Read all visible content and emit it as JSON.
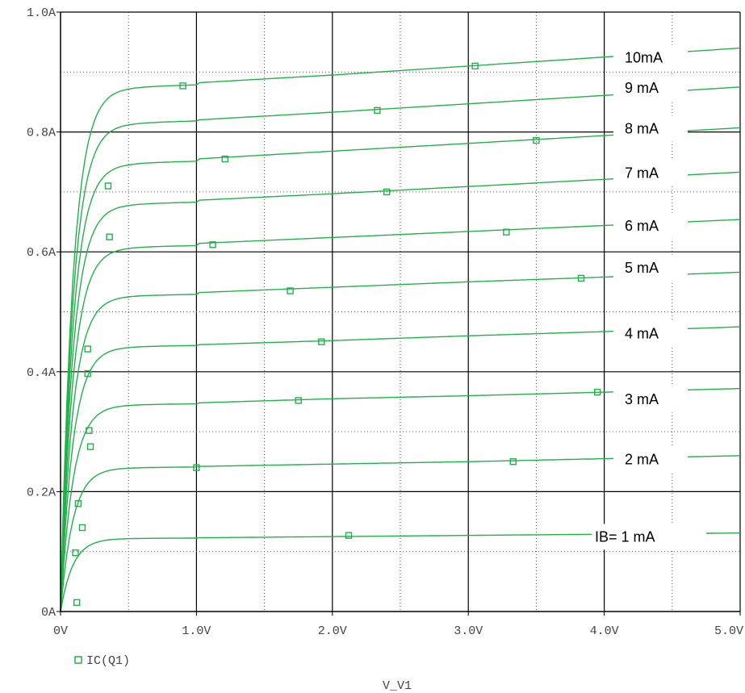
{
  "chart_data": {
    "type": "line",
    "title": "",
    "xlabel": "V_V1",
    "ylabel": "",
    "xlim": [
      0,
      5.0
    ],
    "ylim": [
      0,
      1.0
    ],
    "x_ticks": [
      "0V",
      "1.0V",
      "2.0V",
      "3.0V",
      "4.0V",
      "5.0V"
    ],
    "y_ticks": [
      "0A",
      "0.2A",
      "0.4A",
      "0.6A",
      "0.8A",
      "1.0A"
    ],
    "grid": true,
    "series_color": "#22b04a",
    "legend": {
      "marker": "square",
      "label": "IC(Q1)",
      "placement": "bottom-left"
    },
    "series": [
      {
        "label": "IB= 1 mA",
        "x": [
          0,
          0.1,
          0.2,
          0.3,
          0.5,
          1.0,
          2.0,
          3.0,
          4.0,
          5.0
        ],
        "y": [
          0,
          0.06,
          0.105,
          0.118,
          0.122,
          0.123,
          0.125,
          0.127,
          0.129,
          0.131
        ],
        "markers": [
          [
            0.12,
            0.015
          ],
          [
            2.12,
            0.127
          ]
        ]
      },
      {
        "label": "2 mA",
        "x": [
          0,
          0.1,
          0.2,
          0.3,
          0.5,
          1.0,
          2.0,
          3.0,
          4.0,
          5.0
        ],
        "y": [
          0,
          0.1,
          0.2,
          0.232,
          0.24,
          0.242,
          0.246,
          0.25,
          0.255,
          0.26
        ],
        "markers": [
          [
            0.16,
            0.14
          ],
          [
            1.0,
            0.24
          ],
          [
            3.33,
            0.25
          ]
        ]
      },
      {
        "label": "3 mA",
        "x": [
          0,
          0.1,
          0.2,
          0.3,
          0.5,
          1.0,
          2.0,
          3.0,
          4.0,
          5.0
        ],
        "y": [
          0,
          0.14,
          0.28,
          0.335,
          0.345,
          0.348,
          0.355,
          0.36,
          0.366,
          0.372
        ],
        "markers": [
          [
            0.22,
            0.275
          ],
          [
            1.75,
            0.352
          ],
          [
            3.95,
            0.366
          ]
        ]
      },
      {
        "label": "4 mA",
        "x": [
          0,
          0.1,
          0.2,
          0.3,
          0.5,
          1.0,
          2.0,
          3.0,
          4.0,
          5.0
        ],
        "y": [
          0,
          0.17,
          0.36,
          0.43,
          0.442,
          0.445,
          0.452,
          0.46,
          0.467,
          0.475
        ],
        "markers": [
          [
            0.13,
            0.18
          ],
          [
            1.92,
            0.45
          ]
        ]
      },
      {
        "label": "5 mA",
        "x": [
          0,
          0.1,
          0.2,
          0.3,
          0.5,
          1.0,
          2.0,
          3.0,
          4.0,
          5.0
        ],
        "y": [
          0,
          0.2,
          0.43,
          0.51,
          0.527,
          0.532,
          0.541,
          0.55,
          0.558,
          0.566
        ],
        "markers": [
          [
            0.11,
            0.098
          ],
          [
            1.69,
            0.535
          ],
          [
            3.83,
            0.556
          ]
        ]
      },
      {
        "label": "6 mA",
        "x": [
          0,
          0.1,
          0.2,
          0.3,
          0.5,
          1.0,
          2.0,
          3.0,
          4.0,
          5.0
        ],
        "y": [
          0,
          0.23,
          0.5,
          0.59,
          0.608,
          0.614,
          0.624,
          0.634,
          0.644,
          0.654
        ],
        "markers": [
          [
            0.21,
            0.302
          ],
          [
            1.12,
            0.612
          ],
          [
            3.28,
            0.633
          ]
        ]
      },
      {
        "label": "7 mA",
        "x": [
          0,
          0.1,
          0.2,
          0.3,
          0.5,
          1.0,
          2.0,
          3.0,
          4.0,
          5.0
        ],
        "y": [
          0,
          0.27,
          0.57,
          0.665,
          0.68,
          0.686,
          0.697,
          0.709,
          0.721,
          0.733
        ],
        "markers": [
          [
            0.2,
            0.397
          ],
          [
            2.4,
            0.7
          ]
        ]
      },
      {
        "label": "8 mA",
        "x": [
          0,
          0.1,
          0.2,
          0.3,
          0.5,
          1.0,
          2.0,
          3.0,
          4.0,
          5.0
        ],
        "y": [
          0,
          0.3,
          0.63,
          0.73,
          0.748,
          0.755,
          0.768,
          0.781,
          0.794,
          0.807
        ],
        "markers": [
          [
            0.2,
            0.438
          ],
          [
            1.21,
            0.755
          ],
          [
            3.5,
            0.786
          ]
        ]
      },
      {
        "label": "9 mA",
        "x": [
          0,
          0.1,
          0.2,
          0.3,
          0.5,
          1.0,
          2.0,
          3.0,
          4.0,
          5.0
        ],
        "y": [
          0,
          0.32,
          0.68,
          0.8,
          0.815,
          0.82,
          0.833,
          0.847,
          0.861,
          0.875
        ],
        "markers": [
          [
            0.36,
            0.625
          ],
          [
            2.33,
            0.836
          ]
        ]
      },
      {
        "label": "10mA",
        "x": [
          0,
          0.1,
          0.2,
          0.3,
          0.5,
          1.0,
          2.0,
          3.0,
          4.0,
          5.0
        ],
        "y": [
          0,
          0.34,
          0.72,
          0.85,
          0.875,
          0.882,
          0.895,
          0.91,
          0.925,
          0.94
        ],
        "markers": [
          [
            0.35,
            0.71
          ],
          [
            0.9,
            0.877
          ],
          [
            3.05,
            0.91
          ]
        ]
      }
    ]
  }
}
